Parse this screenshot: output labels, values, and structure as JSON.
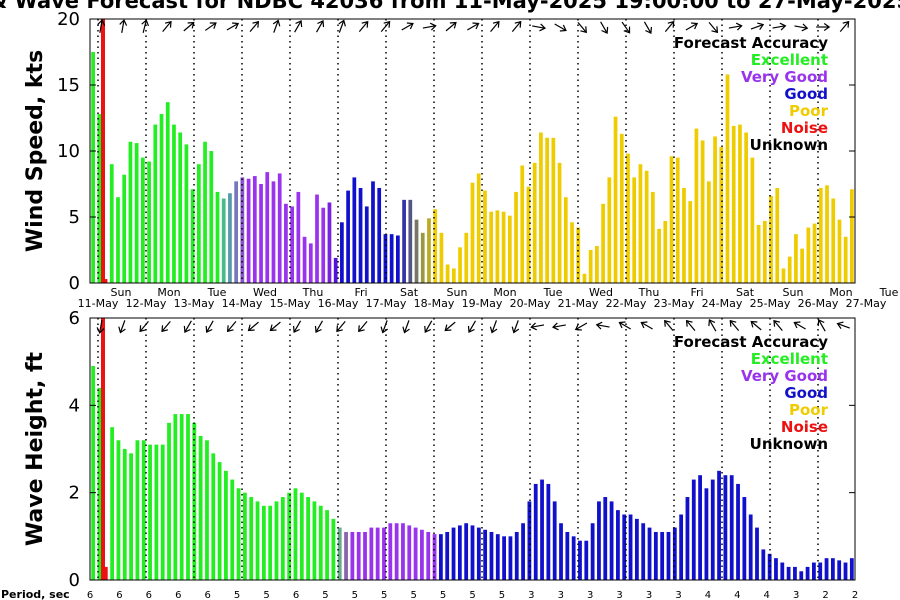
{
  "title": "& Wave Forecast for NDBC 42036 from 11-May-2025 19:00:00 to 27-May-2025",
  "period_label": "Period, sec",
  "legend": {
    "title": "Forecast Accuracy",
    "items": [
      {
        "label": "Excellent",
        "color": "#22ee22"
      },
      {
        "label": "Very Good",
        "color": "#9933ee"
      },
      {
        "label": "Good",
        "color": "#1111cc"
      },
      {
        "label": "Poor",
        "color": "#eecc00"
      },
      {
        "label": "Noise",
        "color": "#ee1111"
      },
      {
        "label": "Unknown",
        "color": "#000000"
      }
    ]
  },
  "days": [
    "Sun",
    "Mon",
    "Tue",
    "Wed",
    "Thu",
    "Fri",
    "Sat",
    "Sun",
    "Mon",
    "Tue",
    "Wed",
    "Thu",
    "Fri",
    "Sat",
    "Sun",
    "Mon",
    "Tue"
  ],
  "dates": [
    "11-May",
    "12-May",
    "13-May",
    "14-May",
    "15-May",
    "16-May",
    "17-May",
    "18-May",
    "19-May",
    "20-May",
    "21-May",
    "22-May",
    "23-May",
    "24-May",
    "25-May",
    "26-May",
    "27-May"
  ],
  "periods": [
    "6",
    "6",
    "6",
    "6",
    "6",
    "5",
    "5",
    "6",
    "5",
    "5",
    "5",
    "5",
    "5",
    "5",
    "5",
    "3",
    "3",
    "3",
    "3",
    "3",
    "3",
    "4",
    "4",
    "4",
    "3",
    "2",
    "2"
  ],
  "chart_data": [
    {
      "type": "bar",
      "ylabel": "Wind Speed, kts",
      "ylim": [
        0,
        20
      ],
      "yticks": [
        0,
        5,
        10,
        15,
        20
      ],
      "x": "3-hourly bars from 11-May-2025 19:00 to 27-May-2025",
      "values": [
        17.5,
        12.8,
        0.3,
        9.0,
        6.5,
        8.2,
        10.7,
        10.6,
        9.5,
        9.2,
        12.0,
        12.8,
        13.7,
        12.0,
        11.4,
        10.5,
        7.1,
        9.0,
        10.7,
        10.0,
        6.9,
        6.4,
        6.8,
        7.7,
        8.0,
        7.9,
        8.1,
        7.5,
        8.4,
        7.7,
        8.3,
        6.0,
        5.8,
        6.9,
        3.5,
        3.0,
        6.7,
        5.7,
        6.1,
        1.9,
        4.6,
        7.0,
        8.0,
        7.2,
        5.8,
        7.7,
        7.2,
        3.7,
        3.7,
        3.6,
        6.3,
        6.3,
        4.8,
        3.8,
        4.9,
        5.6,
        3.8,
        1.4,
        1.1,
        2.7,
        3.8,
        7.6,
        8.3,
        7.0,
        5.4,
        5.5,
        5.4,
        5.1,
        6.9,
        8.9,
        7.3,
        9.1,
        11.4,
        11.0,
        11.0,
        9.1,
        6.5,
        4.6,
        4.2,
        0.7,
        2.5,
        2.8,
        6.0,
        8.0,
        12.6,
        11.3,
        9.8,
        8.0,
        9.0,
        8.5,
        6.9,
        4.1,
        4.7,
        9.6,
        9.5,
        7.2,
        6.2,
        11.7,
        10.8,
        7.7,
        11.1,
        10.3,
        15.8,
        11.9,
        12.0,
        11.4,
        9.5,
        4.4,
        4.7,
        6.6,
        7.2,
        1.1,
        2.0,
        3.7,
        2.6,
        4.2,
        4.5,
        7.2,
        7.4,
        6.4,
        4.8,
        3.5,
        7.1
      ],
      "colors": [
        "#22ee22",
        "#22ee22",
        "#ee1111",
        "#22ee22",
        "#22ee22",
        "#22ee22",
        "#22ee22",
        "#22ee22",
        "#22ee22",
        "#22ee22",
        "#22ee22",
        "#22ee22",
        "#22ee22",
        "#22ee22",
        "#22ee22",
        "#22ee22",
        "#22ee22",
        "#22ee22",
        "#22ee22",
        "#22ee22",
        "#22ee22",
        "#44bb88",
        "#5599aa",
        "#7777bb",
        "#8855cc",
        "#9933ee",
        "#9933ee",
        "#9933ee",
        "#9933ee",
        "#9933ee",
        "#9933ee",
        "#9933ee",
        "#9933ee",
        "#9933ee",
        "#9933ee",
        "#9933ee",
        "#9933ee",
        "#9933ee",
        "#7722dd",
        "#5511dd",
        "#1111cc",
        "#1111cc",
        "#1111cc",
        "#1111cc",
        "#1111cc",
        "#1111cc",
        "#1111cc",
        "#1111cc",
        "#1111cc",
        "#1111cc",
        "#3333aa",
        "#555588",
        "#777766",
        "#999944",
        "#bbaa22",
        "#eecc00",
        "#eecc00",
        "#eecc00",
        "#eecc00",
        "#eecc00",
        "#eecc00",
        "#eecc00",
        "#eecc00",
        "#eecc00",
        "#eecc00",
        "#eecc00",
        "#eecc00",
        "#eecc00",
        "#eecc00",
        "#eecc00",
        "#eecc00",
        "#eecc00",
        "#eecc00",
        "#eecc00",
        "#eecc00",
        "#eecc00",
        "#eecc00",
        "#eecc00",
        "#eecc00",
        "#eecc00",
        "#eecc00",
        "#eecc00",
        "#eecc00",
        "#eecc00",
        "#eecc00",
        "#eecc00",
        "#eecc00",
        "#eecc00",
        "#eecc00",
        "#eecc00",
        "#eecc00",
        "#eecc00",
        "#eecc00",
        "#eecc00",
        "#eecc00",
        "#eecc00",
        "#eecc00",
        "#eecc00",
        "#eecc00",
        "#eecc00",
        "#eecc00",
        "#eecc00",
        "#eecc00",
        "#eecc00",
        "#eecc00",
        "#eecc00",
        "#eecc00",
        "#eecc00",
        "#eecc00",
        "#eecc00",
        "#eecc00",
        "#eecc00",
        "#eecc00",
        "#eecc00",
        "#eecc00",
        "#eecc00",
        "#eecc00",
        "#eecc00",
        "#eecc00",
        "#eecc00",
        "#eecc00",
        "#eecc00",
        "#eecc00"
      ],
      "arrows": [
        10,
        10,
        14,
        40,
        50,
        55,
        60,
        40,
        20,
        30,
        30,
        20,
        40,
        40,
        60,
        80,
        50,
        60,
        40,
        40,
        100,
        120,
        140,
        150,
        145,
        150,
        40,
        60,
        140,
        80,
        70,
        80,
        100,
        90,
        40
      ]
    },
    {
      "type": "bar",
      "ylabel": "Wave Height, ft",
      "ylim": [
        0,
        6
      ],
      "yticks": [
        0,
        2,
        4,
        6
      ],
      "x": "3-hourly bars from 11-May-2025 19:00 to 27-May-2025",
      "values": [
        4.9,
        4.4,
        0.3,
        3.5,
        3.2,
        3.0,
        2.9,
        3.2,
        3.2,
        3.1,
        3.1,
        3.1,
        3.6,
        3.8,
        3.8,
        3.8,
        3.6,
        3.3,
        3.2,
        2.9,
        2.7,
        2.5,
        2.3,
        2.1,
        2.0,
        1.9,
        1.8,
        1.7,
        1.7,
        1.8,
        1.9,
        2.0,
        2.1,
        2.0,
        1.9,
        1.8,
        1.7,
        1.6,
        1.4,
        1.2,
        1.1,
        1.1,
        1.1,
        1.1,
        1.2,
        1.2,
        1.2,
        1.3,
        1.3,
        1.3,
        1.25,
        1.2,
        1.15,
        1.1,
        1.05,
        1.05,
        1.1,
        1.2,
        1.25,
        1.3,
        1.25,
        1.2,
        1.15,
        1.1,
        1.05,
        1.0,
        1.0,
        1.1,
        1.3,
        1.8,
        2.2,
        2.3,
        2.2,
        1.8,
        1.3,
        1.1,
        1.0,
        0.9,
        0.9,
        1.3,
        1.8,
        1.9,
        1.8,
        1.6,
        1.5,
        1.5,
        1.4,
        1.3,
        1.2,
        1.1,
        1.1,
        1.1,
        1.2,
        1.5,
        1.9,
        2.3,
        2.4,
        2.1,
        2.3,
        2.5,
        2.4,
        2.4,
        2.2,
        1.9,
        1.5,
        1.2,
        0.7,
        0.6,
        0.5,
        0.4,
        0.3,
        0.3,
        0.2,
        0.3,
        0.4,
        0.4,
        0.5,
        0.5,
        0.45,
        0.4,
        0.5
      ],
      "colors": [
        "#22ee22",
        "#22ee22",
        "#ee1111",
        "#22ee22",
        "#22ee22",
        "#22ee22",
        "#22ee22",
        "#22ee22",
        "#22ee22",
        "#22ee22",
        "#22ee22",
        "#22ee22",
        "#22ee22",
        "#22ee22",
        "#22ee22",
        "#22ee22",
        "#22ee22",
        "#22ee22",
        "#22ee22",
        "#22ee22",
        "#22ee22",
        "#22ee22",
        "#22ee22",
        "#22ee22",
        "#22ee22",
        "#22ee22",
        "#22ee22",
        "#22ee22",
        "#22ee22",
        "#22ee22",
        "#22ee22",
        "#22ee22",
        "#22ee22",
        "#22ee22",
        "#22ee22",
        "#22ee22",
        "#22ee22",
        "#22ee22",
        "#22ee22",
        "#66aa88",
        "#8866aa",
        "#9933ee",
        "#9933ee",
        "#9933ee",
        "#9933ee",
        "#9933ee",
        "#9933ee",
        "#9933ee",
        "#9933ee",
        "#9933ee",
        "#9933ee",
        "#9933ee",
        "#9933ee",
        "#9933ee",
        "#9933ee",
        "#1111cc",
        "#1111cc",
        "#1111cc",
        "#1111cc",
        "#1111cc",
        "#1111cc",
        "#1111cc",
        "#1111cc",
        "#1111cc",
        "#1111cc",
        "#1111cc",
        "#1111cc",
        "#1111cc",
        "#1111cc",
        "#1111cc",
        "#1111cc",
        "#1111cc",
        "#1111cc",
        "#1111cc",
        "#1111cc",
        "#1111cc",
        "#1111cc",
        "#1111cc",
        "#1111cc",
        "#1111cc",
        "#1111cc",
        "#1111cc",
        "#1111cc",
        "#1111cc",
        "#1111cc",
        "#1111cc",
        "#1111cc",
        "#1111cc",
        "#1111cc",
        "#1111cc",
        "#1111cc",
        "#1111cc",
        "#1111cc",
        "#1111cc",
        "#1111cc",
        "#1111cc",
        "#1111cc",
        "#1111cc",
        "#1111cc",
        "#1111cc",
        "#1111cc",
        "#1111cc",
        "#1111cc",
        "#1111cc",
        "#1111cc",
        "#1111cc",
        "#1111cc",
        "#1111cc",
        "#1111cc",
        "#1111cc",
        "#1111cc",
        "#1111cc",
        "#1111cc",
        "#1111cc",
        "#1111cc",
        "#1111cc",
        "#1111cc",
        "#1111cc",
        "#1111cc",
        "#1111cc",
        "#1111cc",
        "#1111cc"
      ],
      "arrows": [
        190,
        200,
        220,
        220,
        210,
        210,
        220,
        230,
        230,
        210,
        210,
        220,
        220,
        200,
        200,
        210,
        230,
        210,
        200,
        200,
        260,
        260,
        240,
        280,
        300,
        300,
        320,
        320,
        330,
        320,
        310,
        320,
        300,
        330,
        290
      ]
    }
  ]
}
